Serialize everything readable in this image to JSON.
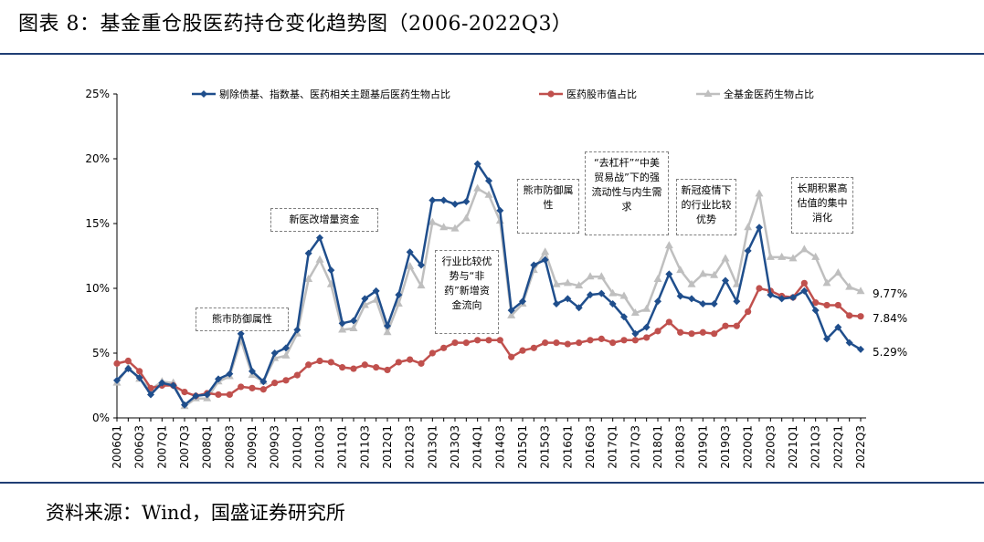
{
  "header": {
    "title": "图表 8：基金重仓股医药持仓变化趋势图（2006-2022Q3）"
  },
  "footer": {
    "source": "资料来源：Wind，国盛证券研究所"
  },
  "annotations": [
    "熊市防御属性",
    "新医改增量资金",
    "行业比较优势与“非药”新增资金流向",
    "熊市防御属性",
    "“去杠杆”“中美贸易战”下的强流动性与内生需求",
    "新冠疫情下的行业比较优势",
    "长期积累高估值的集中消化"
  ],
  "end_labels": {
    "s1": "5.29%",
    "s2": "7.84%",
    "s3": "9.77%"
  },
  "colors": {
    "s1": "#1f4e8c",
    "s2": "#c0504d",
    "s3": "#bfbfbf"
  },
  "chart_data": {
    "type": "line",
    "title": "",
    "xlabel": "",
    "ylabel": "",
    "ylim": [
      0,
      25
    ],
    "yticks": [
      "0%",
      "5%",
      "10%",
      "15%",
      "20%",
      "25%"
    ],
    "x": [
      "2006Q1",
      "2006Q2",
      "2006Q3",
      "2006Q4",
      "2007Q1",
      "2007Q2",
      "2007Q3",
      "2007Q4",
      "2008Q1",
      "2008Q2",
      "2008Q3",
      "2008Q4",
      "2009Q1",
      "2009Q2",
      "2009Q3",
      "2009Q4",
      "2010Q1",
      "2010Q2",
      "2010Q3",
      "2010Q4",
      "2011Q1",
      "2011Q2",
      "2011Q3",
      "2011Q4",
      "2012Q1",
      "2012Q2",
      "2012Q3",
      "2012Q4",
      "2013Q1",
      "2013Q2",
      "2013Q3",
      "2013Q4",
      "2014Q1",
      "2014Q2",
      "2014Q3",
      "2014Q4",
      "2015Q1",
      "2015Q2",
      "2015Q3",
      "2015Q4",
      "2016Q1",
      "2016Q2",
      "2016Q3",
      "2016Q4",
      "2017Q1",
      "2017Q2",
      "2017Q3",
      "2017Q4",
      "2018Q1",
      "2018Q2",
      "2018Q3",
      "2018Q4",
      "2019Q1",
      "2019Q2",
      "2019Q3",
      "2019Q4",
      "2020Q1",
      "2020Q2",
      "2020Q3",
      "2020Q4",
      "2021Q1",
      "2021Q2",
      "2021Q3",
      "2021Q4",
      "2022Q1",
      "2022Q2",
      "2022Q3"
    ],
    "xtick_labels": [
      "2006Q1",
      "2006Q3",
      "2007Q1",
      "2007Q3",
      "2008Q1",
      "2008Q3",
      "2009Q1",
      "2009Q3",
      "2010Q1",
      "2010Q3",
      "2011Q1",
      "2011Q3",
      "2012Q1",
      "2012Q3",
      "2013Q1",
      "2013Q3",
      "2014Q1",
      "2014Q3",
      "2015Q1",
      "2015Q3",
      "2016Q1",
      "2016Q3",
      "2017Q1",
      "2017Q3",
      "2018Q1",
      "2018Q3",
      "2019Q1",
      "2019Q3",
      "2020Q1",
      "2020Q3",
      "2021Q1",
      "2021Q3",
      "2022Q1",
      "2022Q3"
    ],
    "series": [
      {
        "name": "剔除债基、指数基、医药相关主题基后医药生物占比",
        "key": "s1",
        "marker": "diamond",
        "values": [
          2.9,
          3.8,
          3.1,
          1.8,
          2.7,
          2.5,
          1.0,
          1.7,
          1.8,
          3.0,
          3.4,
          6.5,
          3.6,
          2.8,
          5.0,
          5.4,
          6.8,
          12.7,
          13.9,
          11.4,
          7.3,
          7.5,
          9.2,
          9.8,
          7.1,
          9.5,
          12.8,
          11.8,
          16.8,
          16.8,
          16.5,
          16.7,
          19.6,
          18.3,
          16.0,
          8.3,
          9.0,
          11.8,
          12.2,
          8.8,
          9.2,
          8.5,
          9.5,
          9.6,
          8.8,
          7.8,
          6.5,
          7.0,
          9.0,
          11.1,
          9.4,
          9.2,
          8.8,
          8.8,
          10.6,
          9.0,
          12.9,
          14.7,
          9.5,
          9.2,
          9.3,
          9.8,
          8.3,
          6.1,
          7.0,
          5.8,
          5.29
        ]
      },
      {
        "name": "医药股市值占比",
        "key": "s2",
        "marker": "circle",
        "values": [
          4.2,
          4.4,
          3.6,
          2.3,
          2.5,
          2.5,
          2.0,
          1.7,
          1.9,
          1.8,
          1.8,
          2.4,
          2.3,
          2.2,
          2.7,
          2.9,
          3.3,
          4.1,
          4.4,
          4.3,
          3.9,
          3.8,
          4.1,
          3.9,
          3.7,
          4.3,
          4.5,
          4.2,
          5.0,
          5.4,
          5.8,
          5.8,
          6.0,
          6.0,
          6.0,
          4.7,
          5.2,
          5.4,
          5.8,
          5.8,
          5.7,
          5.8,
          6.0,
          6.1,
          5.8,
          6.0,
          6.0,
          6.2,
          6.7,
          7.4,
          6.6,
          6.5,
          6.6,
          6.5,
          7.1,
          7.1,
          8.2,
          10.0,
          9.8,
          9.4,
          9.3,
          10.4,
          8.9,
          8.7,
          8.7,
          7.9,
          7.84
        ]
      },
      {
        "name": "全基金医药生物占比",
        "key": "s3",
        "marker": "triangle",
        "values": [
          2.7,
          3.9,
          3.0,
          2.2,
          2.8,
          2.7,
          0.9,
          1.5,
          1.5,
          2.8,
          3.2,
          6.0,
          3.3,
          2.8,
          4.6,
          4.8,
          6.5,
          10.7,
          12.2,
          10.3,
          6.8,
          6.9,
          8.7,
          9.1,
          6.6,
          8.8,
          11.7,
          10.2,
          15.1,
          14.7,
          14.6,
          15.4,
          17.7,
          17.2,
          15.2,
          7.9,
          8.8,
          11.4,
          12.8,
          10.3,
          10.4,
          10.2,
          10.9,
          10.9,
          9.6,
          9.4,
          8.1,
          8.4,
          10.7,
          13.3,
          11.4,
          10.3,
          11.1,
          11.0,
          12.3,
          10.3,
          14.7,
          17.3,
          12.4,
          12.4,
          12.3,
          13.0,
          12.4,
          10.4,
          11.2,
          10.1,
          9.77
        ]
      }
    ]
  }
}
